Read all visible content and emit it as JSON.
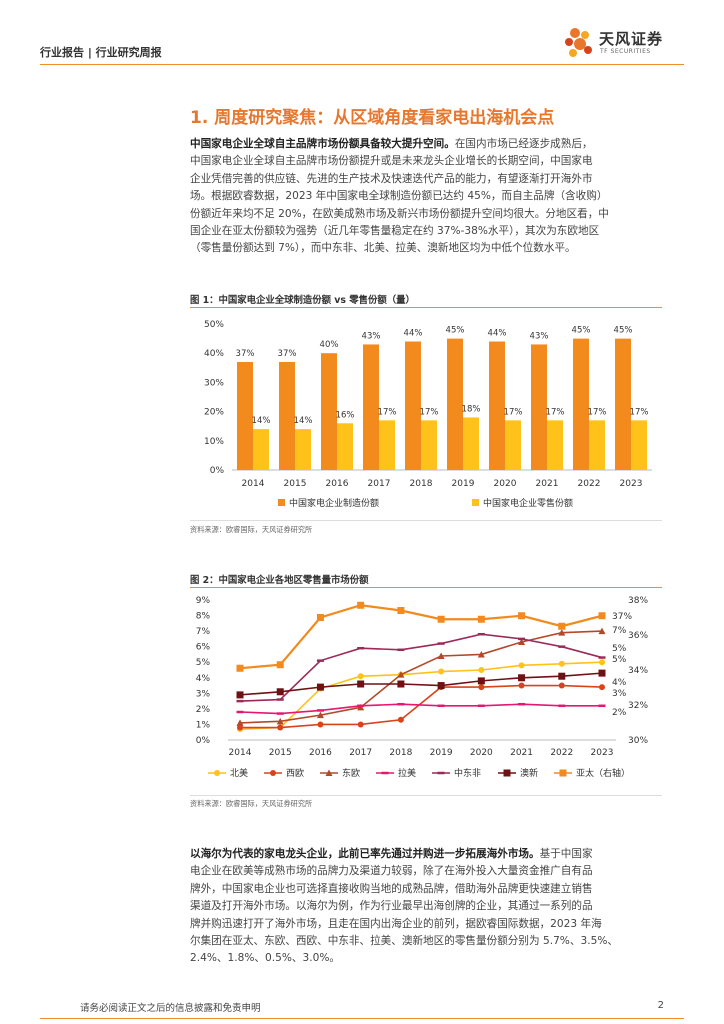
{
  "header": {
    "breadcrumb": "行业报告 | 行业研究周报",
    "logo_name": "天风证券",
    "logo_sub": "TF SECURITIES"
  },
  "section_title": "1. 周度研究聚焦：从区域角度看家电出海机会点",
  "para1": {
    "lead": "中国家电企业全球自主品牌市场份额具备较大提升空间。",
    "lines": [
      "在国内市场已经逐步成熟后，",
      "中国家电企业全球自主品牌市场份额提升或是未来龙头企业增长的长期空间，中国家电",
      "企业凭借完善的供应链、先进的生产技术及快速迭代产品的能力，有望逐渐打开海外市",
      "场。根据欧睿数据，2023 年中国家电全球制造份额已达约 45%，而自主品牌（含收购）",
      "份额近年来均不足 20%，在欧美成熟市场及新兴市场份额提升空间均很大。分地区看，中",
      "国企业在亚太份额较为强势（近几年零售量稳定在约 37%-38%水平），其次为东欧地区",
      "（零售量份额达到 7%），而中东非、北美、拉美、澳新地区均为中低个位数水平。"
    ]
  },
  "fig1": {
    "title": "图 1：中国家电企业全球制造份额 vs 零售份额（量）",
    "source": "资料来源：欧睿国际，天风证券研究所"
  },
  "fig2": {
    "title": "图 2：中国家电企业各地区零售量市场份额",
    "source": "资料来源：欧睿国际，天风证券研究所"
  },
  "para2": {
    "lead": "以海尔为代表的家电龙头企业，此前已率先通过并购进一步拓展海外市场。",
    "lines": [
      "基于中国家",
      "电企业在欧美等成熟市场的品牌力及渠道力较弱，除了在海外投入大量资金推广自有品",
      "牌外，中国家电企业也可选择直接收购当地的成熟品牌，借助海外品牌更快速建立销售",
      "渠道及打开海外市场。以海尔为例，作为行业最早出海创牌的企业，其通过一系列的品",
      "牌并购迅速打开了海外市场，且走在国内出海企业的前列，据欧睿国际数据，2023 年海",
      "尔集团在亚太、东欧、西欧、中东非、拉美、澳新地区的零售量份额分别为 5.7%、3.5%、",
      "2.4%、1.8%、0.5%、3.0%。"
    ]
  },
  "footer": {
    "disclaimer": "请务必阅读正文之后的信息披露和免责申明",
    "page": "2"
  },
  "chart_data": [
    {
      "type": "bar",
      "categories": [
        "2014",
        "2015",
        "2016",
        "2017",
        "2018",
        "2019",
        "2020",
        "2021",
        "2022",
        "2023"
      ],
      "series": [
        {
          "name": "中国家电企业制造份额",
          "values": [
            37,
            37,
            40,
            43,
            44,
            45,
            44,
            43,
            45,
            45
          ],
          "labels": [
            "37%",
            "37%",
            "40%",
            "43%",
            "44%",
            "45%",
            "44%",
            "43%",
            "45%",
            "45%"
          ],
          "color": "#f28a1e"
        },
        {
          "name": "中国家电企业零售份额",
          "values": [
            14,
            14,
            16,
            17,
            17,
            18,
            17,
            17,
            17,
            17
          ],
          "labels": [
            "14%",
            "14%",
            "16%",
            "17%",
            "17%",
            "18%",
            "17%",
            "17%",
            "17%",
            "17%"
          ],
          "color": "#ffc21a"
        }
      ],
      "ylim": [
        0,
        50
      ],
      "yticks": [
        "0%",
        "10%",
        "20%",
        "30%",
        "40%",
        "50%"
      ],
      "legend": "bottom"
    },
    {
      "type": "line",
      "x": [
        "2014",
        "2015",
        "2016",
        "2017",
        "2018",
        "2019",
        "2020",
        "2021",
        "2022",
        "2023"
      ],
      "ylim": [
        0,
        9
      ],
      "yticks": [
        "0%",
        "1%",
        "2%",
        "3%",
        "4%",
        "5%",
        "6%",
        "7%",
        "8%",
        "9%"
      ],
      "y2lim": [
        30,
        38
      ],
      "y2ticks": [
        "30%",
        "32%",
        "34%",
        "36%",
        "38%"
      ],
      "series": [
        {
          "name": "北美",
          "values": [
            0.7,
            0.8,
            3.3,
            4.1,
            4.2,
            4.4,
            4.5,
            4.8,
            4.9,
            5.0
          ],
          "end_label": "5%",
          "color": "#ffc21a",
          "marker": "circle",
          "axis": "left"
        },
        {
          "name": "西欧",
          "values": [
            0.8,
            0.8,
            1.0,
            1.0,
            1.3,
            3.4,
            3.4,
            3.5,
            3.5,
            3.4
          ],
          "end_label": "3%",
          "color": "#d8431c",
          "marker": "circle",
          "axis": "left"
        },
        {
          "name": "东欧",
          "values": [
            1.1,
            1.2,
            1.6,
            2.1,
            4.2,
            5.4,
            5.5,
            6.3,
            6.9,
            7.0
          ],
          "end_label": "7%",
          "color": "#b24a2a",
          "marker": "triangle",
          "axis": "left"
        },
        {
          "name": "拉美",
          "values": [
            1.8,
            1.7,
            1.9,
            2.2,
            2.3,
            2.2,
            2.2,
            2.3,
            2.2,
            2.2
          ],
          "end_label": "2%",
          "color": "#e4186e",
          "marker": "dash",
          "axis": "left"
        },
        {
          "name": "中东非",
          "values": [
            2.5,
            2.6,
            5.1,
            5.9,
            5.8,
            6.2,
            6.8,
            6.5,
            6.0,
            5.3
          ],
          "end_label": "5%",
          "color": "#9c2a58",
          "marker": "dash",
          "axis": "left"
        },
        {
          "name": "澳新",
          "values": [
            2.9,
            3.1,
            3.4,
            3.6,
            3.6,
            3.5,
            3.8,
            4.0,
            4.1,
            4.3
          ],
          "end_label": "4%",
          "color": "#6e1014",
          "marker": "square",
          "axis": "left"
        },
        {
          "name": "亚太（右轴）",
          "values": [
            34.1,
            34.3,
            37.0,
            37.7,
            37.4,
            36.9,
            36.9,
            37.1,
            36.5,
            37.1
          ],
          "end_label": "37%",
          "color": "#f28a1e",
          "marker": "square",
          "axis": "right"
        }
      ],
      "legend": "bottom"
    }
  ]
}
